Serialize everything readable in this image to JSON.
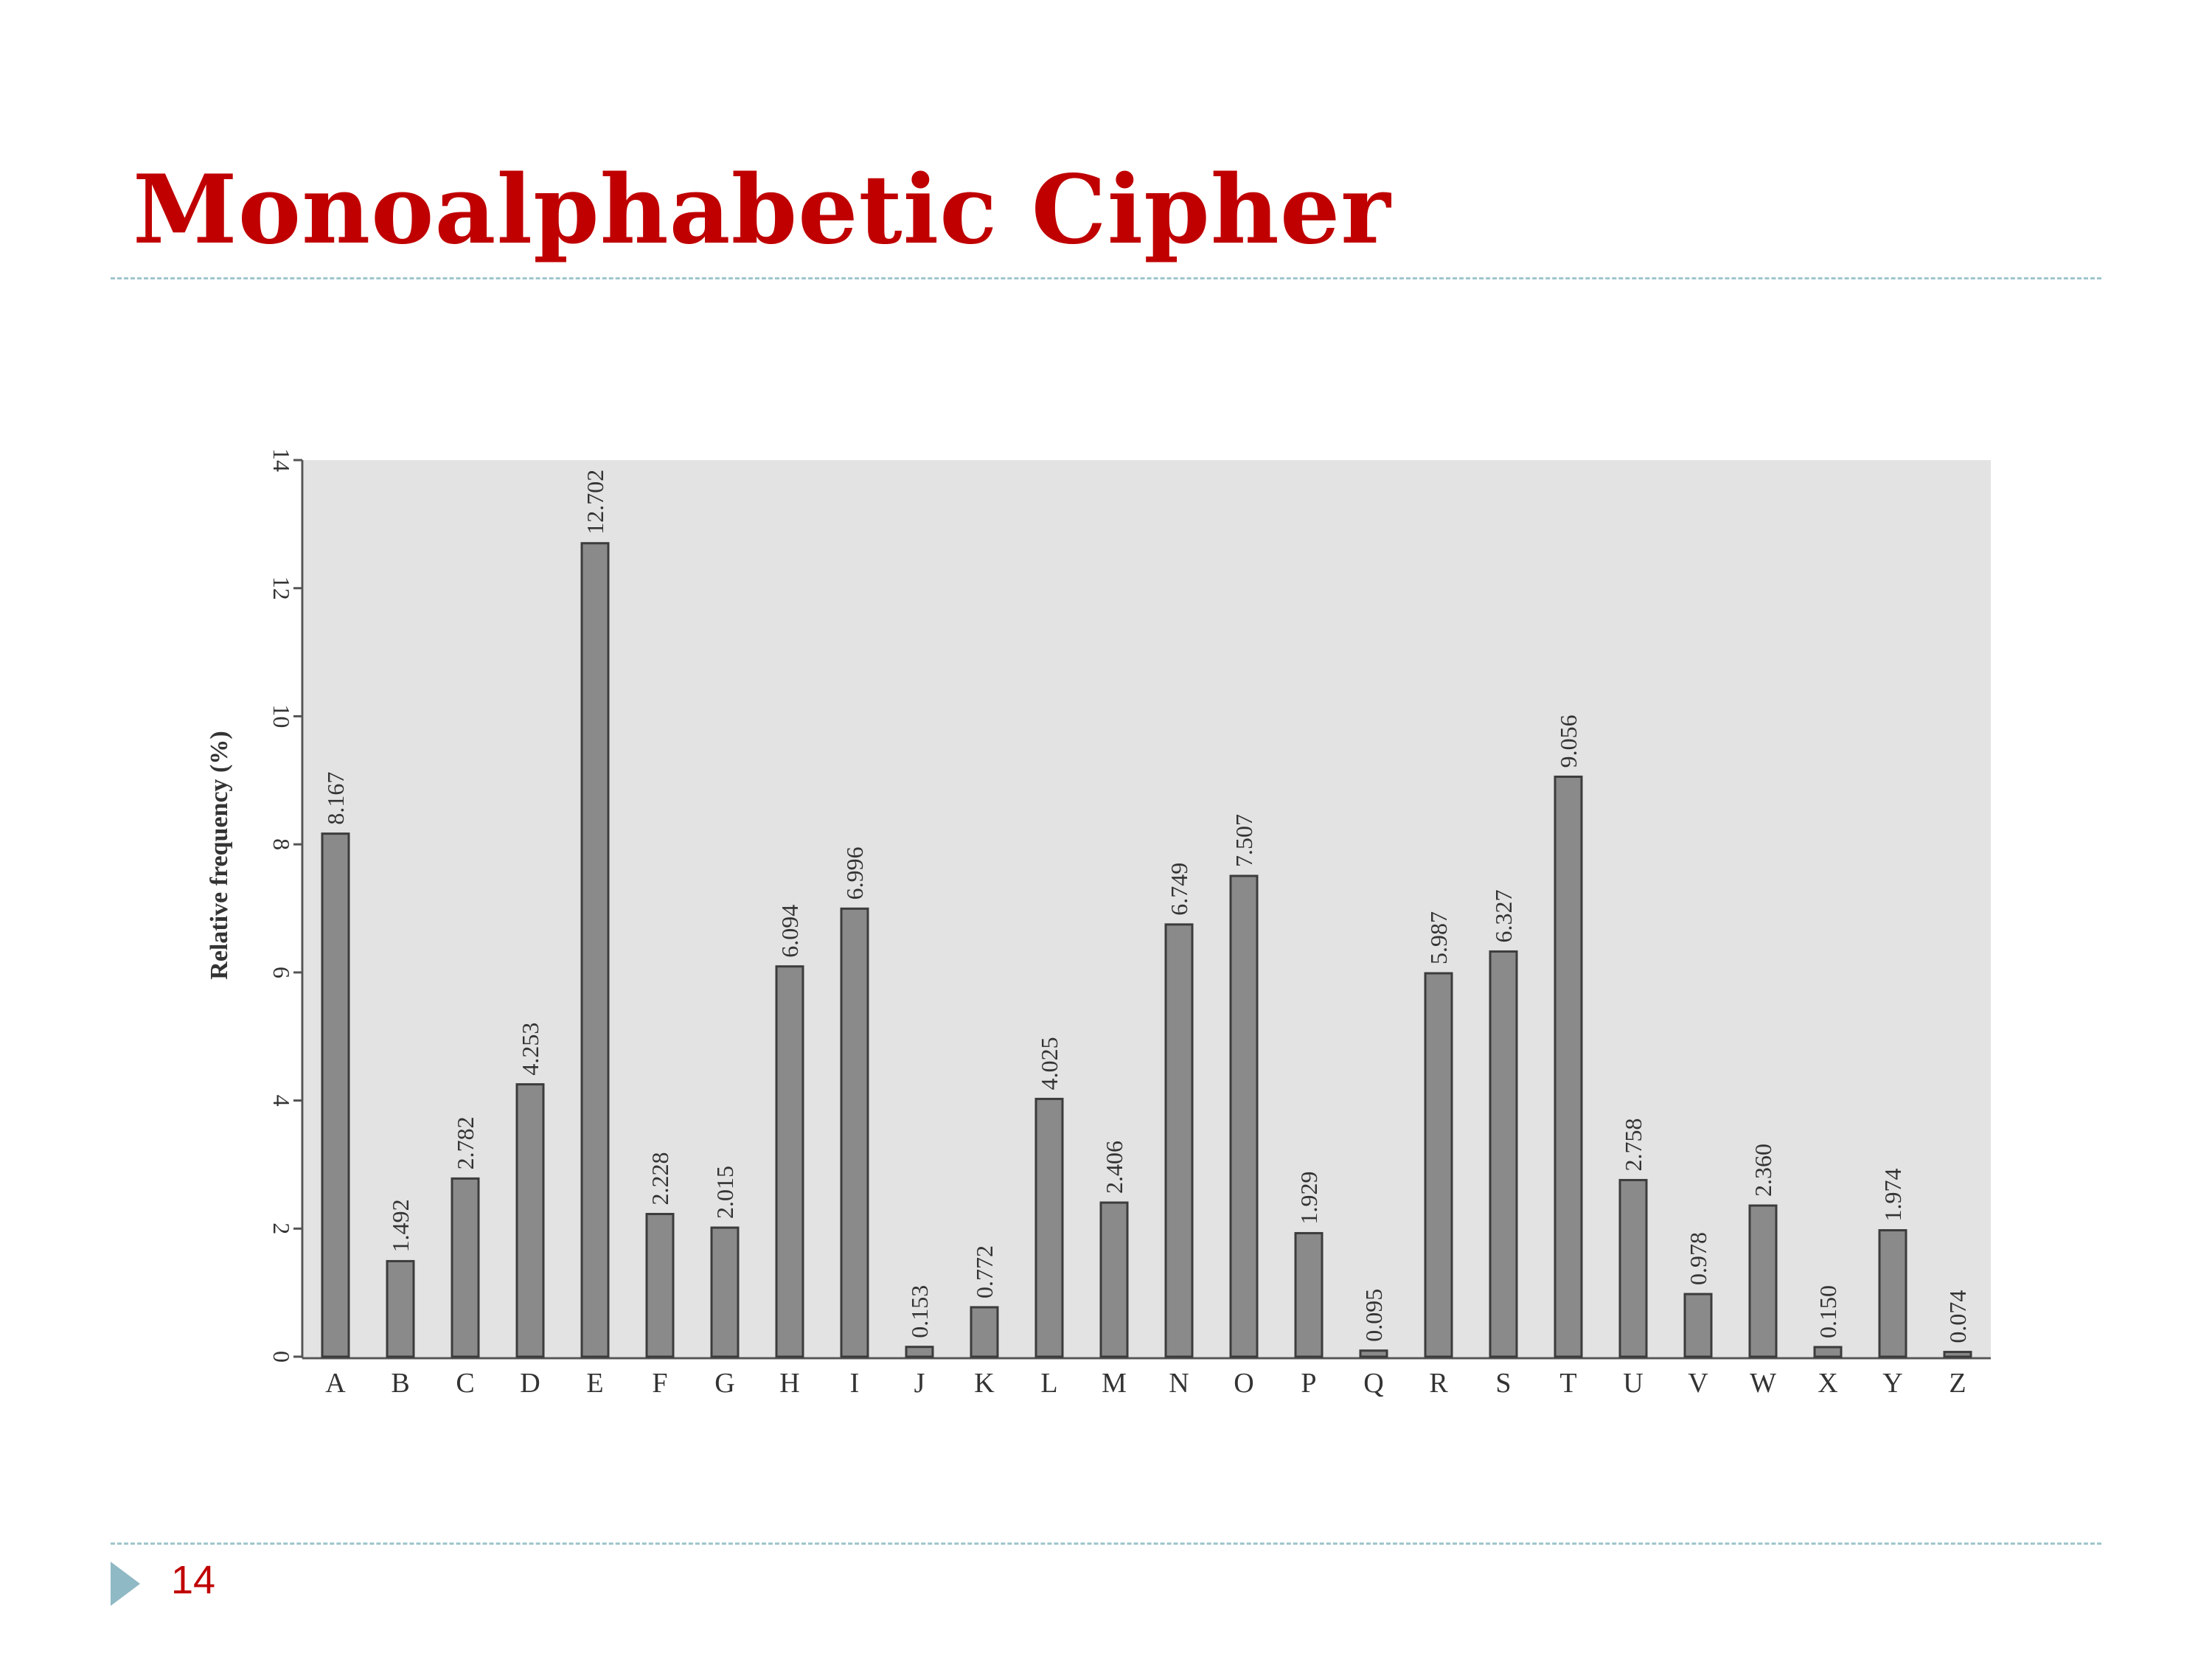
{
  "slide": {
    "title": "Monoalphabetic Cipher",
    "page_number": "14",
    "accent_color": "#c00000",
    "divider_color": "#9fc6cc"
  },
  "chart_data": {
    "type": "bar",
    "title": "",
    "xlabel": "",
    "ylabel": "Relative frequency (%)",
    "ylim": [
      0,
      14
    ],
    "yticks": [
      0,
      2,
      4,
      6,
      8,
      10,
      12,
      14
    ],
    "grid": false,
    "plot_background": "#e3e3e3",
    "bar_color": "#8a8a8a",
    "categories": [
      "A",
      "B",
      "C",
      "D",
      "E",
      "F",
      "G",
      "H",
      "I",
      "J",
      "K",
      "L",
      "M",
      "N",
      "O",
      "P",
      "Q",
      "R",
      "S",
      "T",
      "U",
      "V",
      "W",
      "X",
      "Y",
      "Z"
    ],
    "values": [
      8.167,
      1.492,
      2.782,
      4.253,
      12.702,
      2.228,
      2.015,
      6.094,
      6.996,
      0.153,
      0.772,
      4.025,
      2.406,
      6.749,
      7.507,
      1.929,
      0.095,
      5.987,
      6.327,
      9.056,
      2.758,
      0.978,
      2.36,
      0.15,
      1.974,
      0.074
    ],
    "value_labels": [
      "8.167",
      "1.492",
      "2.782",
      "4.253",
      "12.702",
      "2.228",
      "2.015",
      "6.094",
      "6.996",
      "0.153",
      "0.772",
      "4.025",
      "2.406",
      "6.749",
      "7.507",
      "1.929",
      "0.095",
      "5.987",
      "6.327",
      "9.056",
      "2.758",
      "0.978",
      "2.360",
      "0.150",
      "1.974",
      "0.074"
    ]
  }
}
